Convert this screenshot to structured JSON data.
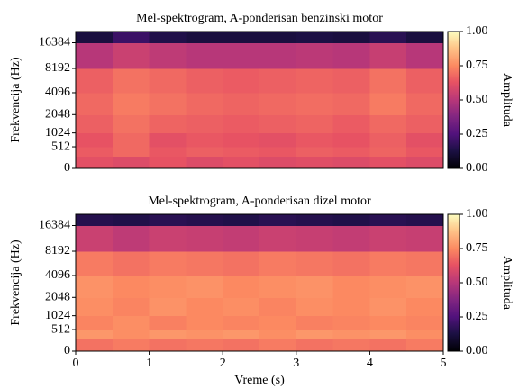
{
  "chart_data": [
    {
      "type": "heatmap",
      "title": "Mel-spektrogram, A-ponderisan benzinski motor",
      "ylabel": "Frekvencija (Hz)",
      "yscale": "mel",
      "ylim": [
        0,
        22050
      ],
      "yticks": [
        0,
        512,
        1024,
        2048,
        4096,
        8192,
        16384
      ],
      "xlim": [
        0,
        5
      ],
      "xbins": [
        0,
        0.5,
        1,
        1.5,
        2,
        2.5,
        3,
        3.5,
        4,
        4.5,
        5
      ],
      "ybins": [
        0,
        256,
        512,
        1024,
        2048,
        4096,
        8192,
        16384,
        22050
      ],
      "z": [
        [
          0.62,
          0.6,
          0.63,
          0.6,
          0.62,
          0.6,
          0.61,
          0.6,
          0.62,
          0.6
        ],
        [
          0.65,
          0.68,
          0.64,
          0.66,
          0.65,
          0.64,
          0.66,
          0.65,
          0.67,
          0.64
        ],
        [
          0.63,
          0.68,
          0.62,
          0.64,
          0.63,
          0.62,
          0.64,
          0.63,
          0.66,
          0.62
        ],
        [
          0.66,
          0.7,
          0.67,
          0.66,
          0.65,
          0.66,
          0.67,
          0.65,
          0.68,
          0.66
        ],
        [
          0.68,
          0.72,
          0.7,
          0.68,
          0.67,
          0.68,
          0.69,
          0.68,
          0.72,
          0.68
        ],
        [
          0.66,
          0.7,
          0.68,
          0.66,
          0.65,
          0.66,
          0.67,
          0.66,
          0.7,
          0.66
        ],
        [
          0.5,
          0.55,
          0.52,
          0.5,
          0.5,
          0.5,
          0.51,
          0.5,
          0.54,
          0.5
        ],
        [
          0.12,
          0.2,
          0.14,
          0.12,
          0.12,
          0.12,
          0.13,
          0.12,
          0.16,
          0.12
        ]
      ],
      "colormap": "magma",
      "clim": [
        0,
        1
      ],
      "colorbar_label": "Amplituda",
      "cticks": [
        {
          "value": 0,
          "label": "0.00"
        },
        {
          "value": 0.25,
          "label": "0.25"
        },
        {
          "value": 0.5,
          "label": "0.50"
        },
        {
          "value": 0.75,
          "label": "0.75"
        },
        {
          "value": 1,
          "label": "1.00"
        }
      ]
    },
    {
      "type": "heatmap",
      "title": "Mel-spektrogram, A-ponderisan dizel motor",
      "ylabel": "Frekvencija (Hz)",
      "xlabel": "Vreme (s)",
      "yscale": "mel",
      "ylim": [
        0,
        22050
      ],
      "yticks": [
        0,
        512,
        1024,
        2048,
        4096,
        8192,
        16384
      ],
      "xlim": [
        0,
        5
      ],
      "xticks": [
        0,
        1,
        2,
        3,
        4,
        5
      ],
      "xbins": [
        0,
        0.5,
        1,
        1.5,
        2,
        2.5,
        3,
        3.5,
        4,
        4.5,
        5
      ],
      "ybins": [
        0,
        256,
        512,
        1024,
        2048,
        4096,
        8192,
        16384,
        22050
      ],
      "z": [
        [
          0.7,
          0.72,
          0.7,
          0.71,
          0.7,
          0.72,
          0.7,
          0.71,
          0.7,
          0.72
        ],
        [
          0.78,
          0.76,
          0.78,
          0.77,
          0.78,
          0.76,
          0.78,
          0.77,
          0.78,
          0.76
        ],
        [
          0.74,
          0.76,
          0.73,
          0.75,
          0.74,
          0.75,
          0.73,
          0.74,
          0.75,
          0.74
        ],
        [
          0.76,
          0.74,
          0.77,
          0.75,
          0.76,
          0.74,
          0.76,
          0.75,
          0.77,
          0.75
        ],
        [
          0.77,
          0.75,
          0.76,
          0.77,
          0.75,
          0.76,
          0.77,
          0.75,
          0.76,
          0.77
        ],
        [
          0.72,
          0.7,
          0.72,
          0.71,
          0.7,
          0.72,
          0.71,
          0.7,
          0.72,
          0.71
        ],
        [
          0.55,
          0.52,
          0.55,
          0.54,
          0.53,
          0.55,
          0.54,
          0.53,
          0.55,
          0.54
        ],
        [
          0.15,
          0.14,
          0.16,
          0.15,
          0.14,
          0.16,
          0.15,
          0.14,
          0.16,
          0.15
        ]
      ],
      "colormap": "magma",
      "clim": [
        0,
        1
      ],
      "colorbar_label": "Amplituda",
      "cticks": [
        {
          "value": 0,
          "label": "0.00"
        },
        {
          "value": 0.25,
          "label": "0.25"
        },
        {
          "value": 0.5,
          "label": "0.50"
        },
        {
          "value": 0.75,
          "label": "0.75"
        },
        {
          "value": 1,
          "label": "1.00"
        }
      ]
    }
  ]
}
